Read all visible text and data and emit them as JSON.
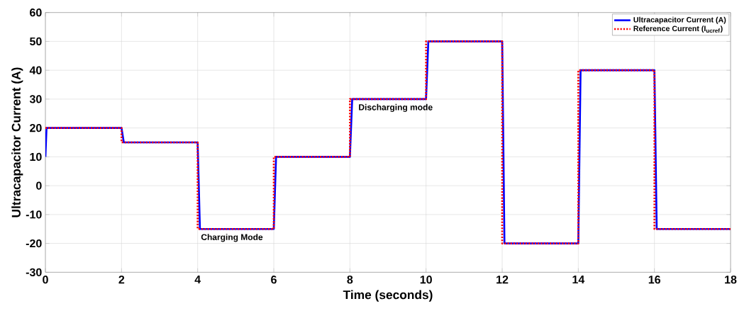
{
  "chart_data": {
    "type": "line",
    "xlabel": "Time (seconds)",
    "ylabel": "Ultracapacitor Current (A)",
    "xlim": [
      0,
      18
    ],
    "ylim": [
      -30,
      60
    ],
    "xticks": [
      0,
      2,
      4,
      6,
      8,
      10,
      12,
      14,
      16,
      18
    ],
    "yticks": [
      -30,
      -20,
      -10,
      0,
      10,
      20,
      30,
      40,
      50,
      60
    ],
    "grid": true,
    "legend": "top right",
    "series": [
      {
        "name": "Ultracapacitor Current (A)",
        "color": "#0000ff",
        "line_style": "solid",
        "x": [
          0,
          0.03,
          2,
          2.06,
          4,
          4.06,
          6,
          6.06,
          8,
          8.06,
          10,
          10.06,
          12,
          12.06,
          14,
          14.06,
          16,
          16.06,
          18
        ],
        "values": [
          10,
          20,
          20,
          15,
          15,
          -15,
          -15,
          10,
          10,
          30,
          30,
          50,
          50,
          -20,
          -20,
          40,
          40,
          -15,
          -15
        ]
      },
      {
        "name": "Reference Current (I$_{ucref}$)",
        "color": "#ff0000",
        "line_style": "dotted",
        "x": [
          0,
          2,
          2,
          4,
          4,
          6,
          6,
          8,
          8,
          10,
          10,
          12,
          12,
          14,
          14,
          16,
          16,
          18
        ],
        "values": [
          20,
          20,
          15,
          15,
          -15,
          -15,
          10,
          10,
          30,
          30,
          50,
          50,
          -20,
          -20,
          40,
          40,
          -15,
          -15
        ]
      }
    ],
    "annotations": [
      {
        "text": "Charging Mode",
        "x": 4.9,
        "y": -15
      },
      {
        "text": "Discharging mode",
        "x": 9.2,
        "y": 30
      }
    ]
  }
}
